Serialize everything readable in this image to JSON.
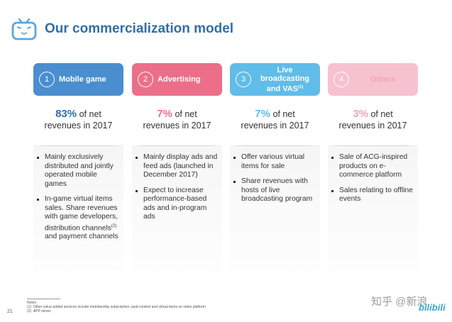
{
  "header": {
    "title": "Our commercialization model",
    "logo_icon": "tv-mascot-icon"
  },
  "colors": {
    "title": "#2f6fa8",
    "mobile_game": "#4a8ed0",
    "advertising": "#ec6f8a",
    "live": "#60bce8",
    "others": "#f7c2cf",
    "others_text": "#f0a6b7",
    "live_text": "#60bce8",
    "advertising_text": "#ec6f8a",
    "mobile_text": "#2f6fa8"
  },
  "columns": [
    {
      "number": "1",
      "label": "Mobile game",
      "pct": "83%",
      "stat_line1": "of net",
      "stat_line2": "revenues in 2017",
      "bullets": [
        "Mainly exclusively distributed and jointly operated mobile games",
        "In-game virtual items sales. Share revenues with game developers, distribution channels",
        "and payment channels"
      ],
      "bullet2_sup": "(2)"
    },
    {
      "number": "2",
      "label": "Advertising",
      "pct": "7%",
      "stat_line1": "of net",
      "stat_line2": "revenues in 2017",
      "bullets": [
        "Mainly display ads and feed ads (launched in December 2017)",
        "Expect to increase performance-based ads and in-program ads"
      ]
    },
    {
      "number": "3",
      "label_line1": "Live",
      "label_line2": "broadcasting",
      "label_line3": "and VAS",
      "label_sup": "(1)",
      "pct": "7%",
      "stat_line1": "of net",
      "stat_line2": "revenues in 2017",
      "bullets": [
        "Offer various virtual items for sale",
        "Share revenues with hosts of live broadcasting program"
      ]
    },
    {
      "number": "4",
      "label": "Others",
      "pct": "3%",
      "stat_line1": "of net",
      "stat_line2": "revenues in 2017",
      "bullets": [
        "Sale of ACG-inspired products on e-commerce platform",
        "Sales relating to offline events"
      ]
    }
  ],
  "notes": {
    "heading": "Notes",
    "n1_num": "(1)",
    "n1": "Other value-added services include membership subscription, paid content and virtual items on video platform",
    "n2_num": "(2)",
    "n2": "APP stores"
  },
  "page_number": "21",
  "watermark": "知乎 @新浪",
  "brand": "bilibili"
}
